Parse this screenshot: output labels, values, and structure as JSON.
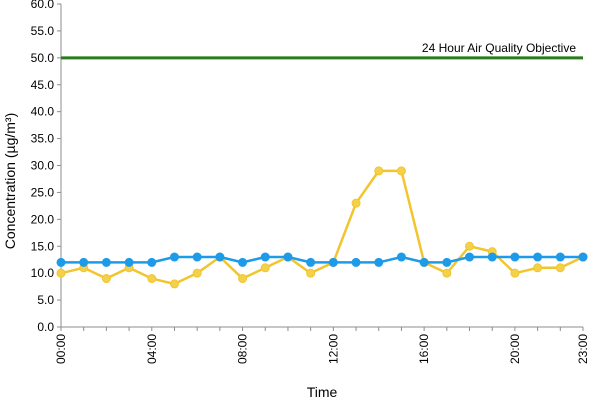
{
  "chart_data": {
    "type": "line",
    "title": "",
    "xlabel": "Time",
    "ylabel": "Concentration (µg/m³)",
    "ylim": [
      0,
      60
    ],
    "y_step": 5,
    "y_tick_decimals": 1,
    "grid": false,
    "x": [
      "00:00",
      "01:00",
      "02:00",
      "03:00",
      "04:00",
      "05:00",
      "06:00",
      "07:00",
      "08:00",
      "09:00",
      "10:00",
      "11:00",
      "12:00",
      "13:00",
      "14:00",
      "15:00",
      "16:00",
      "17:00",
      "18:00",
      "19:00",
      "20:00",
      "21:00",
      "22:00",
      "23:00"
    ],
    "x_tick_labels": [
      "00:00",
      "04:00",
      "08:00",
      "12:00",
      "16:00",
      "20:00",
      "23:00"
    ],
    "series": [
      {
        "color": "#f2c52e",
        "marker_fill": "#f4d14a",
        "values": [
          10,
          11,
          9,
          11,
          9,
          8,
          10,
          13,
          9,
          11,
          13,
          10,
          12,
          23,
          29,
          29,
          12,
          10,
          15,
          14,
          10,
          11,
          11,
          13
        ]
      },
      {
        "color": "#1e9be8",
        "marker_fill": "#1e9be8",
        "values": [
          12,
          12,
          12,
          12,
          12,
          13,
          13,
          13,
          12,
          13,
          13,
          12,
          12,
          12,
          12,
          13,
          12,
          12,
          13,
          13,
          13,
          13,
          13,
          13
        ]
      }
    ],
    "reference_line": {
      "label": "24 Hour Air Quality Objective",
      "value": 50,
      "color": "#2a7a1e"
    }
  }
}
